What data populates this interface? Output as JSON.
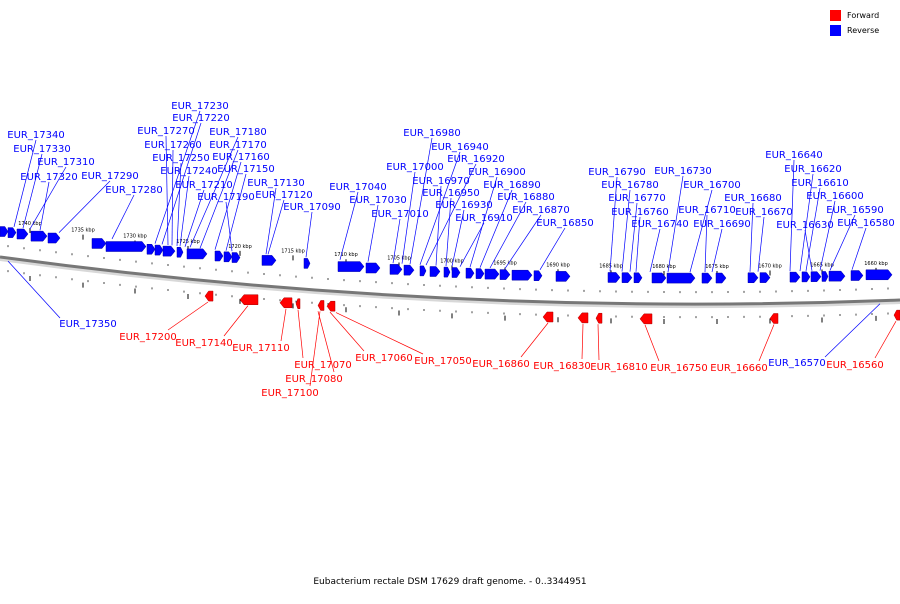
{
  "legend": {
    "forward_label": "Forward",
    "reverse_label": "Reverse",
    "forward_color": "#ff0000",
    "reverse_color": "#0000ff"
  },
  "caption": "Eubacterium rectale DSM 17629 draft genome. - 0..3344951",
  "ticks": [
    {
      "label": "1740 kbp"
    },
    {
      "label": "1735 kbp"
    },
    {
      "label": "1730 kbp"
    },
    {
      "label": "1725 kbp"
    },
    {
      "label": "1720 kbp"
    },
    {
      "label": "1715 kbp"
    },
    {
      "label": "1710 kbp"
    },
    {
      "label": "1705 kbp"
    },
    {
      "label": "1700 kbp"
    },
    {
      "label": "1695 kbp"
    },
    {
      "label": "1690 kbp"
    },
    {
      "label": "1685 kbp"
    },
    {
      "label": "1680 kbp"
    },
    {
      "label": "1675 kbp"
    },
    {
      "label": "1670 kbp"
    },
    {
      "label": "1665 kbp"
    },
    {
      "label": "1660 kbp"
    }
  ],
  "reverse_genes": [
    "EUR_17340",
    "EUR_17330",
    "EUR_17310",
    "EUR_17320",
    "EUR_17290",
    "EUR_17280",
    "EUR_17230",
    "EUR_17220",
    "EUR_17270",
    "EUR_17260",
    "EUR_17250",
    "EUR_17240",
    "EUR_17210",
    "EUR_17180",
    "EUR_17170",
    "EUR_17160",
    "EUR_17150",
    "EUR_17190",
    "EUR_17130",
    "EUR_17120",
    "EUR_17090",
    "EUR_17040",
    "EUR_17030",
    "EUR_17010",
    "EUR_16980",
    "EUR_17000",
    "EUR_16940",
    "EUR_16920",
    "EUR_16970",
    "EUR_16950",
    "EUR_16930",
    "EUR_16910",
    "EUR_16900",
    "EUR_16890",
    "EUR_16880",
    "EUR_16870",
    "EUR_16850",
    "EUR_16790",
    "EUR_16780",
    "EUR_16770",
    "EUR_16760",
    "EUR_16740",
    "EUR_16730",
    "EUR_16700",
    "EUR_16710",
    "EUR_16690",
    "EUR_16680",
    "EUR_16670",
    "EUR_16640",
    "EUR_16620",
    "EUR_16610",
    "EUR_16600",
    "EUR_16630",
    "EUR_16590",
    "EUR_16580",
    "EUR_17350",
    "EUR_16570"
  ],
  "forward_genes": [
    "EUR_17200",
    "EUR_17140",
    "EUR_17110",
    "EUR_17070",
    "EUR_17080",
    "EUR_17100",
    "EUR_17060",
    "EUR_17050",
    "EUR_16860",
    "EUR_16830",
    "EUR_16810",
    "EUR_16750",
    "EUR_16660",
    "EUR_16560"
  ]
}
